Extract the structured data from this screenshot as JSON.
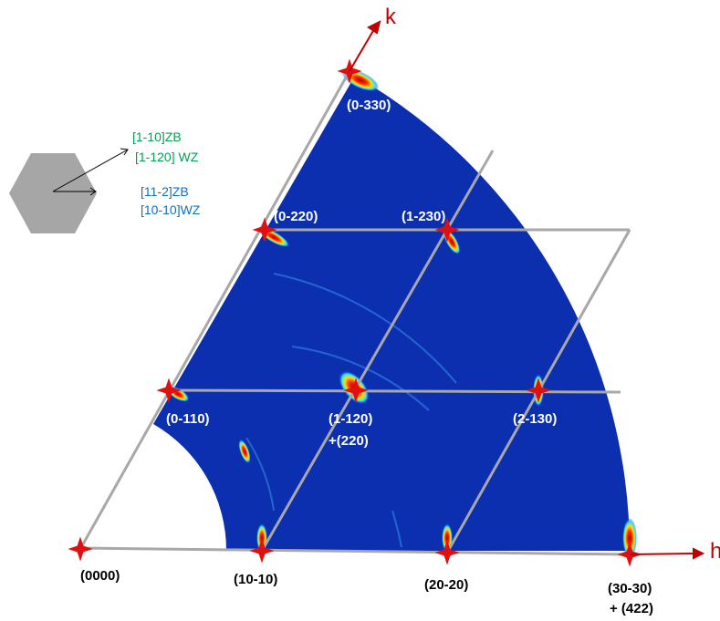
{
  "axes": {
    "h": "h",
    "k": "k"
  },
  "legend": {
    "direction_1": [
      "[1-10]ZB",
      "[1-120] WZ"
    ],
    "direction_2": [
      "[11-2]ZB",
      "[10-10]WZ"
    ]
  },
  "points": [
    {
      "label": "(0000)"
    },
    {
      "label": "(10-10)"
    },
    {
      "label": "(20-20)"
    },
    {
      "label": "(30-30)",
      "label_2": "+ (422)"
    },
    {
      "label": "(0-110)"
    },
    {
      "label": "(1-120)",
      "label_2": "+(220)"
    },
    {
      "label": "(2-130)"
    },
    {
      "label": "(0-220)"
    },
    {
      "label": "(1-230)"
    },
    {
      "label": "(0-330)"
    }
  ]
}
